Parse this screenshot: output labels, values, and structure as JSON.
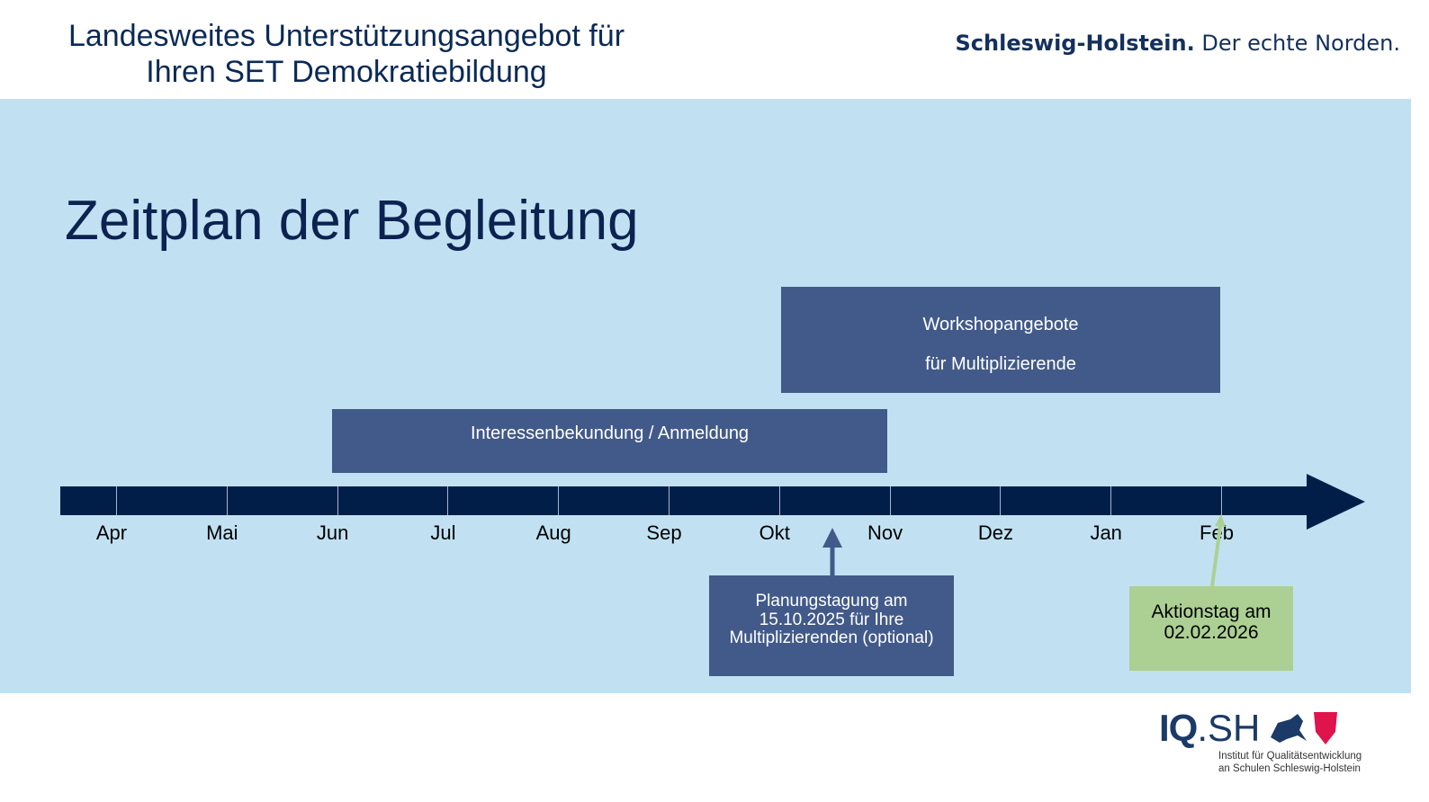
{
  "header": {
    "title_line1": "Landesweites Unterstützungsangebot für",
    "title_line2": "Ihren SET Demokratiebildung",
    "brand_bold": "Schleswig-Holstein.",
    "brand_rest": " Der echte Norden."
  },
  "main_title": "Zeitplan der Begleitung",
  "timeline": {
    "months": [
      "Apr",
      "Mai",
      "Jun",
      "Jul",
      "Aug",
      "Sep",
      "Okt",
      "Nov",
      "Dez",
      "Jan",
      "Feb"
    ]
  },
  "boxes": {
    "workshop_line1": "Workshopangebote",
    "workshop_line2": "für Multiplizierende",
    "interest": "Interessenbekundung / Anmeldung",
    "planning_line1": "Planungstagung am",
    "planning_line2": "15.10.2025  für Ihre",
    "planning_line3": "Multiplizierenden (optional)",
    "action_line1": "Aktionstag am",
    "action_line2": "02.02.2026"
  },
  "logo": {
    "iq": "IQ",
    "sh": ".SH",
    "sub_line1": "Institut für Qualitätsentwicklung",
    "sub_line2": "an Schulen Schleswig-Holstein"
  },
  "colors": {
    "panel": "#c1e1f2",
    "bar": "#011e48",
    "box": "#425a89",
    "action": "#acd093"
  }
}
